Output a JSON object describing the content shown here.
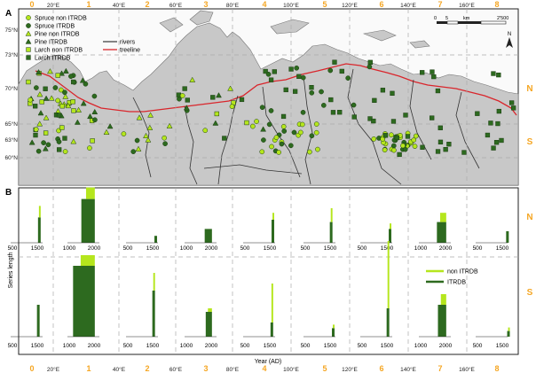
{
  "panel_a": {
    "label": "A",
    "legend": [
      {
        "text": "Spruce non ITRDB",
        "marker": "circle",
        "color": "#b5e61d"
      },
      {
        "text": "Spruce ITRDB",
        "marker": "circle",
        "color": "#2d6a1f"
      },
      {
        "text": "Pine non ITRDB",
        "marker": "triangle",
        "color": "#b5e61d"
      },
      {
        "text": "Pine ITRDB",
        "marker": "triangle",
        "color": "#2d6a1f"
      },
      {
        "text": "Larch non ITRDB",
        "marker": "square",
        "color": "#b5e61d"
      },
      {
        "text": "Larch ITRDB",
        "marker": "square",
        "color": "#2d6a1f"
      }
    ],
    "line_legend": [
      {
        "text": "rivers",
        "color": "#444444"
      },
      {
        "text": "treeline",
        "color": "#d9262c"
      }
    ],
    "lat_labels": [
      "75°N",
      "73°N",
      "70°N",
      "65°N",
      "63°N",
      "60°N"
    ],
    "zone_labels": [
      "N",
      "S"
    ],
    "scale": {
      "values": [
        "0",
        "5",
        "km"
      ],
      "end": "2'500"
    },
    "north": "N"
  },
  "panel_b": {
    "label": "B",
    "ylabel": "Series length",
    "xlabel": "Year (AD)",
    "zone_labels": [
      "N",
      "S"
    ],
    "legend": [
      {
        "text": "non ITRDB",
        "color": "#b5e61d"
      },
      {
        "text": "ITRDB",
        "color": "#2d6a1f"
      }
    ]
  },
  "sectors_top": [
    "0",
    "1",
    "2",
    "3",
    "4",
    "5",
    "6",
    "7",
    "8"
  ],
  "sectors_bottom": [
    "0",
    "1",
    "2",
    "3",
    "4",
    "5",
    "6",
    "7",
    "8"
  ],
  "lon_top": [
    "20°E",
    "40°E",
    "60°E",
    "80°E",
    "100°E",
    "120°E",
    "140°E",
    "160°E"
  ],
  "lon_bottom": [
    "20°E",
    "40°E",
    "60°E",
    "80°E",
    "100°E",
    "120°E",
    "140°E",
    "160°E"
  ],
  "chart_data": {
    "type": "bar",
    "x_axis": "Year (AD)",
    "rows": [
      "N",
      "S"
    ],
    "panels": [
      {
        "sector": "0",
        "ticks_n": [
          "500",
          "1500"
        ],
        "ticks_s": [
          "500",
          "1500"
        ],
        "n": {
          "non": 0.25,
          "itrdb": 0.55,
          "start": 1550
        },
        "s": {
          "non": 0.0,
          "itrdb": 0.45,
          "start": 1500
        }
      },
      {
        "sector": "1",
        "ticks_n": [
          "1000",
          "2000"
        ],
        "ticks_s": [
          "1000",
          "2000"
        ],
        "n": {
          "non": 0.25,
          "itrdb": 0.95,
          "start": 1400
        },
        "s": {
          "non": 0.15,
          "itrdb": 1.0,
          "start": 1000
        }
      },
      {
        "sector": "2",
        "ticks_n": [
          "500",
          "1500"
        ],
        "ticks_s": [
          "500",
          "1500"
        ],
        "n": {
          "non": 0.0,
          "itrdb": 0.15,
          "start": 1600
        },
        "s": {
          "non": 0.25,
          "itrdb": 0.65,
          "start": 1500
        }
      },
      {
        "sector": "3",
        "ticks_n": [
          "1000",
          "2000"
        ],
        "ticks_s": [
          "1000",
          "2000"
        ],
        "n": {
          "non": 0.0,
          "itrdb": 0.3,
          "start": 1700
        },
        "s": {
          "non": 0.05,
          "itrdb": 0.35,
          "start": 1750
        }
      },
      {
        "sector": "4",
        "ticks_n": [
          "500",
          "1500"
        ],
        "ticks_s": [
          "500",
          "1500"
        ],
        "n": {
          "non": 0.15,
          "itrdb": 0.5,
          "start": 1600
        },
        "s": {
          "non": 0.55,
          "itrdb": 0.2,
          "start": 1550
        }
      },
      {
        "sector": "5",
        "ticks_n": [
          "500",
          "1500"
        ],
        "ticks_s": [
          "500",
          "1500"
        ],
        "n": {
          "non": 0.3,
          "itrdb": 0.45,
          "start": 1500
        },
        "s": {
          "non": 0.05,
          "itrdb": 0.12,
          "start": 1600
        }
      },
      {
        "sector": "6",
        "ticks_n": [
          "500",
          "1500"
        ],
        "ticks_s": [
          "500",
          "1500"
        ],
        "n": {
          "non": 0.12,
          "itrdb": 0.3,
          "start": 1600
        },
        "s": {
          "non": 0.95,
          "itrdb": 0.4,
          "start": 1500
        }
      },
      {
        "sector": "7",
        "ticks_n": [
          "1000",
          "2000"
        ],
        "ticks_s": [
          "1000",
          "2000"
        ],
        "n": {
          "non": 0.2,
          "itrdb": 0.45,
          "start": 1600
        },
        "s": {
          "non": 0.15,
          "itrdb": 0.45,
          "start": 1650
        }
      },
      {
        "sector": "8",
        "ticks_n": [
          "500",
          "1500"
        ],
        "ticks_s": [
          "500",
          "1500"
        ],
        "n": {
          "non": 0.0,
          "itrdb": 0.25,
          "start": 1700
        },
        "s": {
          "non": 0.05,
          "itrdb": 0.08,
          "start": 1750
        }
      }
    ]
  }
}
